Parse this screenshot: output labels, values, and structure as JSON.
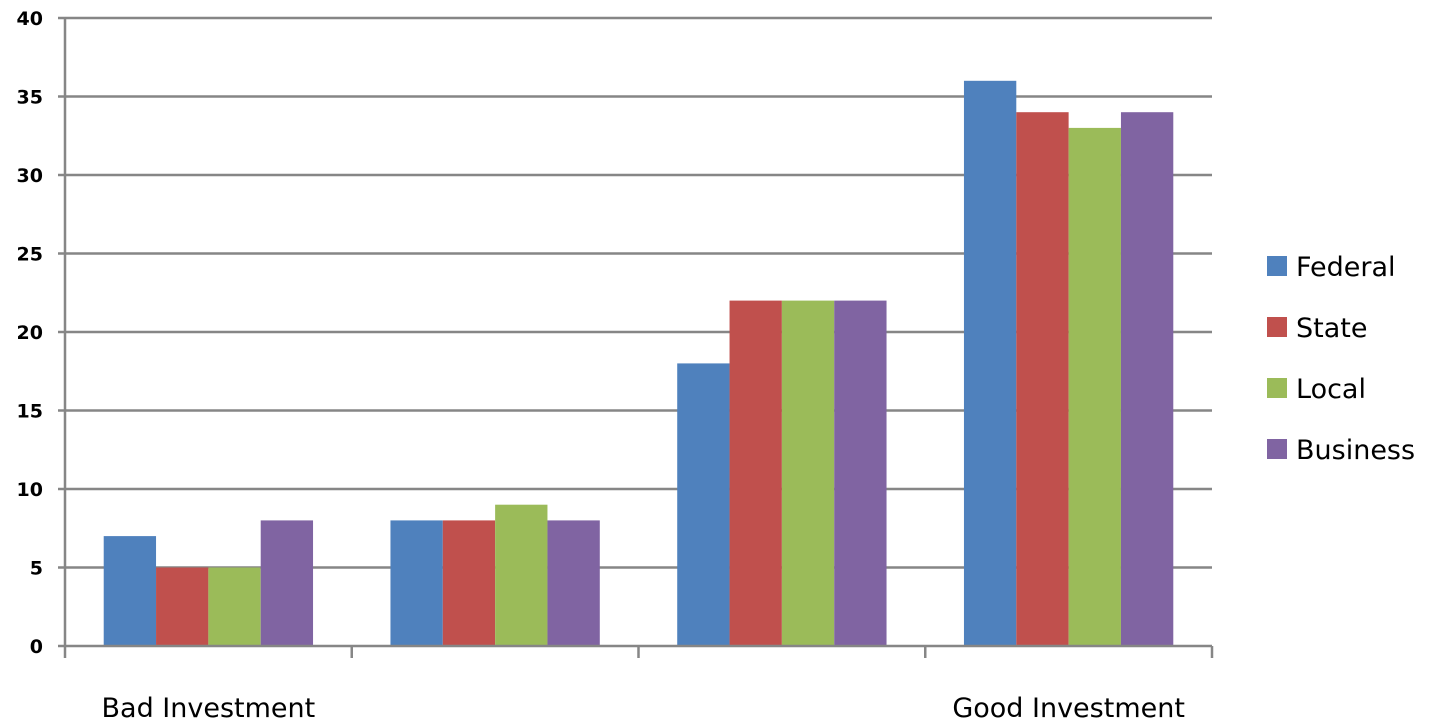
{
  "chart_data": {
    "type": "bar",
    "categories": [
      "Bad Investment",
      "",
      "",
      "Good Investment"
    ],
    "series": [
      {
        "name": "Federal",
        "color": "#4F81BD",
        "values": [
          7,
          8,
          18,
          36
        ]
      },
      {
        "name": "State",
        "color": "#C0504D",
        "values": [
          5,
          8,
          22,
          34
        ]
      },
      {
        "name": "Local",
        "color": "#9BBB59",
        "values": [
          5,
          9,
          22,
          33
        ]
      },
      {
        "name": "Business",
        "color": "#8064A2",
        "values": [
          8,
          8,
          22,
          34
        ]
      }
    ],
    "y_ticks": [
      0,
      5,
      10,
      15,
      20,
      25,
      30,
      35,
      40
    ],
    "ylim": [
      0,
      40
    ],
    "title": "",
    "xlabel": "",
    "ylabel": "",
    "grid": true,
    "legend_position": "right"
  }
}
